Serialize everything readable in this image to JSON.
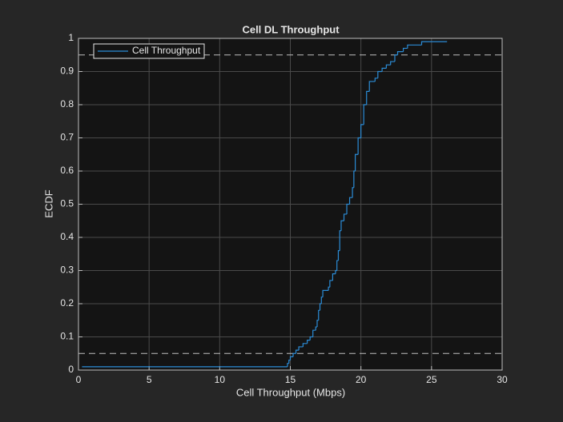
{
  "chart_data": {
    "type": "ecdf",
    "title": "Cell DL Throughput",
    "xlabel": "Cell Throughput (Mbps)",
    "ylabel": "ECDF",
    "xlim": [
      0,
      30
    ],
    "ylim": [
      0,
      1
    ],
    "xticks": [
      0,
      5,
      10,
      15,
      20,
      25,
      30
    ],
    "yticks": [
      0,
      0.1,
      0.2,
      0.3,
      0.4,
      0.5,
      0.6,
      0.7,
      0.8,
      0.9,
      1
    ],
    "grid": true,
    "legend": "northwest",
    "reference_lines": [
      0.05,
      0.95
    ],
    "series": [
      {
        "name": "Cell Throughput",
        "color": "#2b8cd6",
        "x": [
          0.25,
          14.8,
          14.9,
          15.0,
          15.2,
          15.4,
          15.6,
          15.9,
          16.2,
          16.4,
          16.6,
          16.8,
          16.9,
          17.0,
          17.1,
          17.2,
          17.3,
          17.7,
          17.8,
          18.0,
          18.2,
          18.3,
          18.4,
          18.5,
          18.6,
          18.8,
          19.0,
          19.2,
          19.4,
          19.5,
          19.6,
          19.8,
          20.0,
          20.2,
          20.4,
          20.6,
          21.0,
          21.2,
          21.5,
          21.8,
          22.1,
          22.4,
          22.6,
          23.0,
          23.3,
          24.3,
          26.1
        ],
        "values": [
          0.01,
          0.02,
          0.03,
          0.04,
          0.05,
          0.06,
          0.07,
          0.08,
          0.09,
          0.1,
          0.12,
          0.13,
          0.15,
          0.18,
          0.2,
          0.22,
          0.24,
          0.25,
          0.27,
          0.29,
          0.3,
          0.33,
          0.36,
          0.42,
          0.45,
          0.47,
          0.5,
          0.52,
          0.55,
          0.6,
          0.65,
          0.7,
          0.74,
          0.8,
          0.84,
          0.87,
          0.88,
          0.9,
          0.91,
          0.92,
          0.93,
          0.95,
          0.96,
          0.97,
          0.98,
          0.99,
          0.99
        ]
      }
    ]
  }
}
